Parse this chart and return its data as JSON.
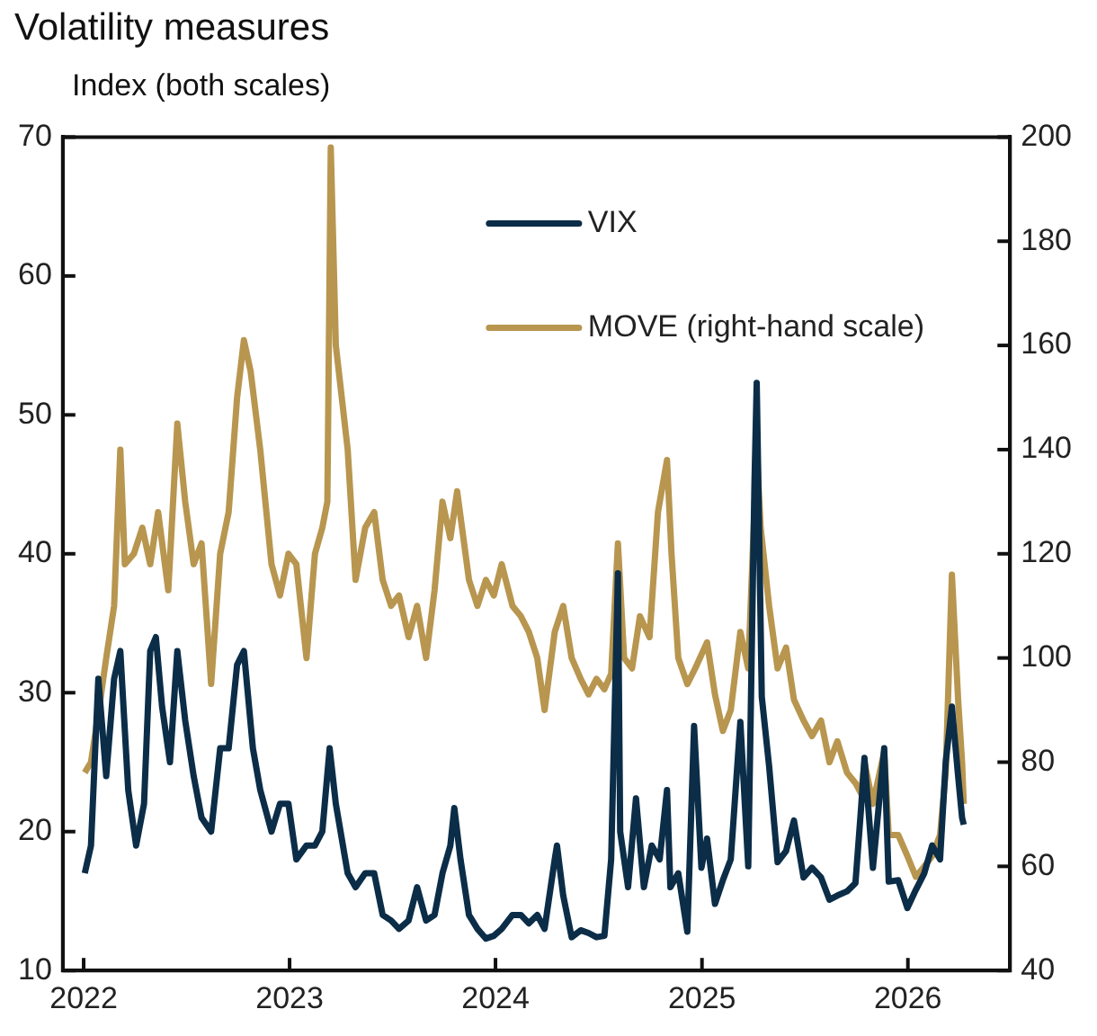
{
  "chart_data": {
    "type": "line",
    "title": "Volatility measures",
    "ylabel": "Index (both scales)",
    "xlim": [
      "2021-11-25",
      "2026-07-01"
    ],
    "xticks": [
      "2022",
      "2023",
      "2024",
      "2025",
      "2026"
    ],
    "ylim": [
      10,
      70
    ],
    "yticks": [
      10,
      20,
      30,
      40,
      50,
      60,
      70
    ],
    "y2lim": [
      40,
      200
    ],
    "y2ticks": [
      40,
      60,
      80,
      100,
      120,
      140,
      160,
      180,
      200
    ],
    "grid": false,
    "legend": "top right",
    "marker": "none",
    "line_style": "solid",
    "series": [
      {
        "name": "VIX",
        "color": "#0b2d48",
        "x": [
          "2022-01-03",
          "2022-01-14",
          "2022-01-27",
          "2022-02-10",
          "2022-02-24",
          "2022-03-07",
          "2022-03-21",
          "2022-04-04",
          "2022-04-18",
          "2022-04-29",
          "2022-05-09",
          "2022-05-20",
          "2022-06-03",
          "2022-06-16",
          "2022-06-30",
          "2022-07-15",
          "2022-07-29",
          "2022-08-15",
          "2022-08-31",
          "2022-09-15",
          "2022-09-30",
          "2022-10-12",
          "2022-10-28",
          "2022-11-10",
          "2022-11-30",
          "2022-12-15",
          "2022-12-30",
          "2023-01-13",
          "2023-01-31",
          "2023-02-15",
          "2023-02-28",
          "2023-03-13",
          "2023-03-24",
          "2023-04-14",
          "2023-04-28",
          "2023-05-15",
          "2023-05-31",
          "2023-06-15",
          "2023-06-30",
          "2023-07-14",
          "2023-07-31",
          "2023-08-15",
          "2023-08-31",
          "2023-09-15",
          "2023-09-29",
          "2023-10-13",
          "2023-10-20",
          "2023-10-31",
          "2023-11-15",
          "2023-11-30",
          "2023-12-15",
          "2023-12-29",
          "2024-01-12",
          "2024-01-31",
          "2024-02-15",
          "2024-02-29",
          "2024-03-15",
          "2024-03-28",
          "2024-04-15",
          "2024-04-19",
          "2024-04-30",
          "2024-05-15",
          "2024-05-31",
          "2024-06-14",
          "2024-06-28",
          "2024-07-12",
          "2024-07-24",
          "2024-08-05",
          "2024-08-09",
          "2024-08-23",
          "2024-09-06",
          "2024-09-20",
          "2024-10-04",
          "2024-10-18",
          "2024-10-31",
          "2024-11-06",
          "2024-11-20",
          "2024-12-06",
          "2024-12-18",
          "2024-12-31",
          "2025-01-10",
          "2025-01-24",
          "2025-02-07",
          "2025-02-21",
          "2025-03-10",
          "2025-03-24",
          "2025-04-04",
          "2025-04-08",
          "2025-04-17",
          "2025-04-30",
          "2025-05-15",
          "2025-05-30",
          "2025-06-13",
          "2025-06-30",
          "2025-07-15",
          "2025-07-31",
          "2025-08-15",
          "2025-08-29",
          "2025-09-15",
          "2025-09-30",
          "2025-10-10",
          "2025-10-16",
          "2025-10-31",
          "2025-11-20",
          "2025-11-28",
          "2025-12-15",
          "2025-12-31",
          "2026-01-15",
          "2026-01-30",
          "2026-02-13",
          "2026-02-27",
          "2026-03-09",
          "2026-03-20",
          "2026-03-31",
          "2026-04-07",
          "2026-04-10"
        ],
        "values": [
          17,
          19,
          31,
          24,
          31,
          33,
          23,
          19,
          22,
          33,
          34,
          29,
          25,
          33,
          28,
          24,
          21,
          20,
          26,
          26,
          32,
          33,
          26,
          23,
          20,
          22,
          22,
          18,
          19,
          19,
          20,
          26,
          22,
          17,
          16,
          17,
          17,
          14,
          13.6,
          13,
          13.6,
          16,
          13.6,
          14,
          17,
          19,
          21.7,
          18,
          14,
          13,
          12.3,
          12.5,
          13,
          14,
          14,
          13.4,
          14,
          13,
          18,
          19,
          15.4,
          12.4,
          12.9,
          12.7,
          12.4,
          12.5,
          18,
          38.6,
          20,
          16,
          22.4,
          16,
          19,
          18,
          23,
          16,
          17,
          12.8,
          27.6,
          17.4,
          19.5,
          14.8,
          16.5,
          18,
          27.9,
          17.5,
          45,
          52.3,
          29.7,
          24.7,
          17.8,
          18.6,
          20.8,
          16.7,
          17.4,
          16.7,
          15.1,
          15.4,
          15.7,
          16.3,
          21.7,
          25.3,
          17.4,
          26,
          16.4,
          16.5,
          14.5,
          15.8,
          17,
          19,
          18,
          25,
          29,
          24,
          21,
          20.5
        ]
      },
      {
        "name": "MOVE (right-hand scale)",
        "color": "#b8964f",
        "axis": "y2",
        "x": [
          "2022-01-03",
          "2022-01-14",
          "2022-01-28",
          "2022-02-10",
          "2022-02-24",
          "2022-03-07",
          "2022-03-15",
          "2022-03-31",
          "2022-04-15",
          "2022-04-29",
          "2022-05-13",
          "2022-05-31",
          "2022-06-16",
          "2022-06-30",
          "2022-07-15",
          "2022-07-29",
          "2022-08-15",
          "2022-08-31",
          "2022-09-15",
          "2022-09-30",
          "2022-10-12",
          "2022-10-24",
          "2022-11-10",
          "2022-11-30",
          "2022-12-15",
          "2022-12-30",
          "2023-01-13",
          "2023-01-31",
          "2023-02-15",
          "2023-02-28",
          "2023-03-09",
          "2023-03-15",
          "2023-03-24",
          "2023-04-14",
          "2023-04-28",
          "2023-05-15",
          "2023-05-31",
          "2023-06-15",
          "2023-06-30",
          "2023-07-14",
          "2023-07-31",
          "2023-08-15",
          "2023-08-31",
          "2023-09-15",
          "2023-09-29",
          "2023-10-13",
          "2023-10-25",
          "2023-11-15",
          "2023-11-30",
          "2023-12-15",
          "2023-12-29",
          "2024-01-12",
          "2024-01-31",
          "2024-02-15",
          "2024-02-29",
          "2024-03-15",
          "2024-03-28",
          "2024-04-15",
          "2024-04-30",
          "2024-05-15",
          "2024-05-31",
          "2024-06-14",
          "2024-06-28",
          "2024-07-12",
          "2024-07-24",
          "2024-08-05",
          "2024-08-16",
          "2024-08-30",
          "2024-09-13",
          "2024-09-30",
          "2024-10-15",
          "2024-10-31",
          "2024-11-08",
          "2024-11-20",
          "2024-12-06",
          "2024-12-20",
          "2025-01-10",
          "2025-01-24",
          "2025-02-07",
          "2025-02-21",
          "2025-03-10",
          "2025-03-24",
          "2025-04-08",
          "2025-04-15",
          "2025-04-30",
          "2025-05-15",
          "2025-05-30",
          "2025-06-13",
          "2025-06-30",
          "2025-07-15",
          "2025-07-31",
          "2025-08-15",
          "2025-08-29",
          "2025-09-15",
          "2025-09-30",
          "2025-10-10",
          "2025-10-16",
          "2025-10-31",
          "2025-11-20",
          "2025-11-28",
          "2025-12-15",
          "2025-12-31",
          "2026-01-15",
          "2026-01-30",
          "2026-02-13",
          "2026-02-27",
          "2026-03-09",
          "2026-03-20",
          "2026-03-31",
          "2026-04-07",
          "2026-04-10"
        ],
        "values": [
          78,
          80,
          90,
          100,
          110,
          140,
          118,
          120,
          125,
          118,
          128,
          113,
          145,
          130,
          118,
          122,
          95,
          120,
          128,
          150,
          161,
          155,
          140,
          118,
          112,
          120,
          118,
          100,
          120,
          125,
          130,
          198,
          160,
          140,
          115,
          125,
          128,
          115,
          110,
          112,
          104,
          110,
          100,
          113,
          130,
          123,
          132,
          115,
          110,
          115,
          112,
          118,
          110,
          108,
          105,
          100,
          90,
          105,
          110,
          100,
          96,
          93,
          96,
          94,
          97,
          122,
          100,
          98,
          108,
          104,
          128,
          138,
          120,
          100,
          95,
          98,
          103,
          93,
          86,
          90,
          105,
          98,
          140,
          125,
          110,
          98,
          102,
          92,
          88,
          85,
          88,
          80,
          84,
          78,
          76,
          74,
          80,
          72,
          82,
          66,
          66,
          62,
          58,
          60,
          62,
          66,
          78,
          116,
          92,
          80,
          72
        ]
      }
    ]
  }
}
